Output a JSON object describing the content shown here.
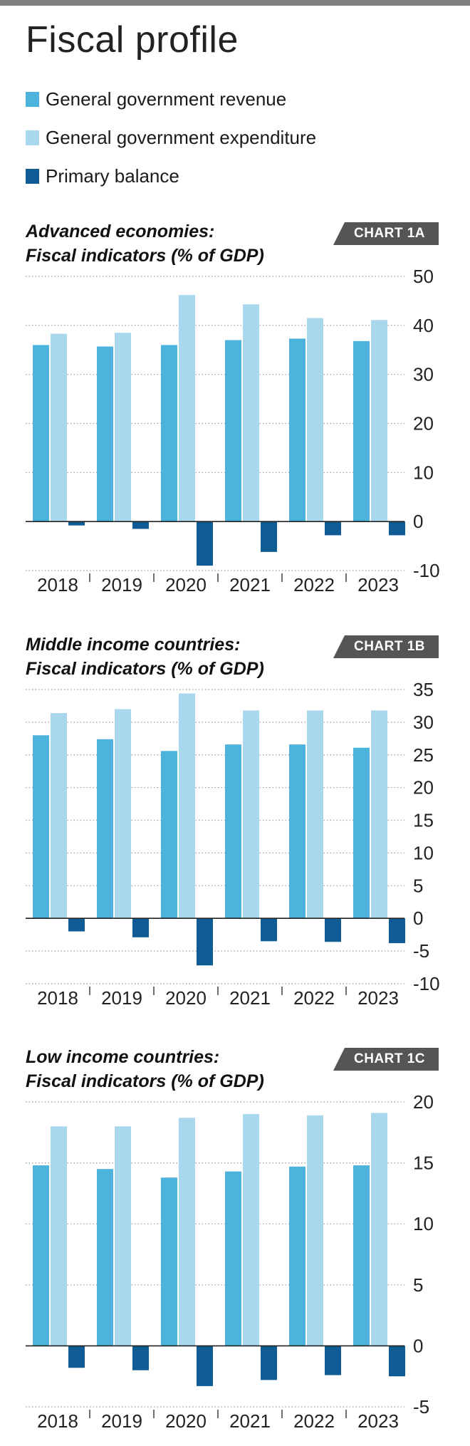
{
  "page": {
    "title": "Fiscal profile"
  },
  "legend": [
    {
      "label": "General government revenue",
      "color": "#4cb4dc"
    },
    {
      "label": "General government expenditure",
      "color": "#a9d7ee"
    },
    {
      "label": "Primary balance",
      "color": "#0f5b93"
    }
  ],
  "charts": [
    {
      "title_line1": "Advanced economies:",
      "title_line2": "Fiscal indicators (% of GDP)",
      "badge": "CHART 1A"
    },
    {
      "title_line1": "Middle income countries:",
      "title_line2": "Fiscal indicators (% of GDP)",
      "badge": "CHART 1B"
    },
    {
      "title_line1": "Low income countries:",
      "title_line2": "Fiscal indicators (% of GDP)",
      "badge": "CHART 1C"
    }
  ],
  "chart_data": [
    {
      "type": "bar",
      "title": "Advanced economies: Fiscal indicators (% of GDP)",
      "categories": [
        "2018",
        "2019",
        "2020",
        "2021",
        "2022",
        "2023"
      ],
      "series": [
        {
          "name": "General government revenue",
          "values": [
            36,
            35.7,
            36,
            37,
            37.3,
            36.8
          ]
        },
        {
          "name": "General government expenditure",
          "values": [
            38.3,
            38.5,
            46.2,
            44.3,
            41.5,
            41.1
          ]
        },
        {
          "name": "Primary balance",
          "values": [
            -0.8,
            -1.5,
            -9,
            -6.2,
            -2.8,
            -2.8
          ]
        }
      ],
      "yticks": [
        50,
        40,
        30,
        20,
        10,
        0,
        -10
      ],
      "ylim": [
        -10,
        50
      ],
      "grid": true,
      "axis_position": "right"
    },
    {
      "type": "bar",
      "title": "Middle income countries: Fiscal indicators (% of GDP)",
      "categories": [
        "2018",
        "2019",
        "2020",
        "2021",
        "2022",
        "2023"
      ],
      "series": [
        {
          "name": "General government revenue",
          "values": [
            28,
            27.4,
            25.6,
            26.6,
            26.6,
            26.1
          ]
        },
        {
          "name": "General government expenditure",
          "values": [
            31.4,
            32,
            34.4,
            31.8,
            31.8,
            31.8
          ]
        },
        {
          "name": "Primary balance",
          "values": [
            -2,
            -2.9,
            -7.2,
            -3.5,
            -3.6,
            -3.8
          ]
        }
      ],
      "yticks": [
        35,
        30,
        25,
        20,
        15,
        10,
        5,
        0,
        -5,
        -10
      ],
      "ylim": [
        -10,
        35
      ],
      "grid": true,
      "axis_position": "right"
    },
    {
      "type": "bar",
      "title": "Low income countries: Fiscal indicators (% of GDP)",
      "categories": [
        "2018",
        "2019",
        "2020",
        "2021",
        "2022",
        "2023"
      ],
      "series": [
        {
          "name": "General government revenue",
          "values": [
            14.8,
            14.5,
            13.8,
            14.3,
            14.7,
            14.8
          ]
        },
        {
          "name": "General government expenditure",
          "values": [
            18,
            18,
            18.7,
            19,
            18.9,
            19.1
          ]
        },
        {
          "name": "Primary balance",
          "values": [
            -1.8,
            -2,
            -3.3,
            -2.8,
            -2.4,
            -2.5
          ]
        }
      ],
      "yticks": [
        20,
        15,
        10,
        5,
        0,
        -5
      ],
      "ylim": [
        -5,
        20
      ],
      "grid": true,
      "axis_position": "right"
    }
  ]
}
